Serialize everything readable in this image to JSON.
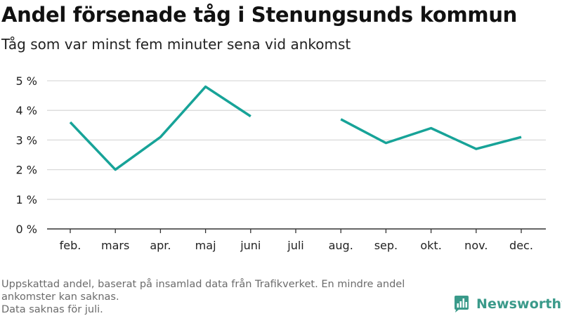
{
  "title": "Andel försenade tåg i Stenungsunds kommun",
  "subtitle": "Tåg som var minst fem minuter sena vid ankomst",
  "notes": [
    "Uppskattad andel, baserat på insamlad data från Trafikverket. En mindre andel ankomster kan saknas.",
    "Data saknas för juli."
  ],
  "brand": {
    "name": "Newsworthy",
    "icon": "bar-chart-logo-icon",
    "color": "#3a9a8a"
  },
  "colors": {
    "line": "#17a398",
    "grid": "#d9d9d9",
    "axis": "#333333",
    "text": "#222222"
  },
  "chart_data": {
    "type": "line",
    "title": "Andel försenade tåg i Stenungsunds kommun",
    "subtitle": "Tåg som var minst fem minuter sena vid ankomst",
    "categories": [
      "feb.",
      "mars",
      "apr.",
      "maj",
      "juni",
      "juli",
      "aug.",
      "sep.",
      "okt.",
      "nov.",
      "dec."
    ],
    "series": [
      {
        "values": [
          3.6,
          2.0,
          3.1,
          4.8,
          3.8,
          null,
          3.7,
          2.9,
          3.4,
          2.7,
          3.1
        ]
      }
    ],
    "ylim": [
      0,
      5
    ],
    "yticks": [
      0,
      1,
      2,
      3,
      4,
      5
    ],
    "ytick_labels": [
      "0 %",
      "1 %",
      "2 %",
      "3 %",
      "4 %",
      "5 %"
    ],
    "xlabel": "",
    "ylabel": "",
    "grid": true,
    "legend": "none"
  }
}
